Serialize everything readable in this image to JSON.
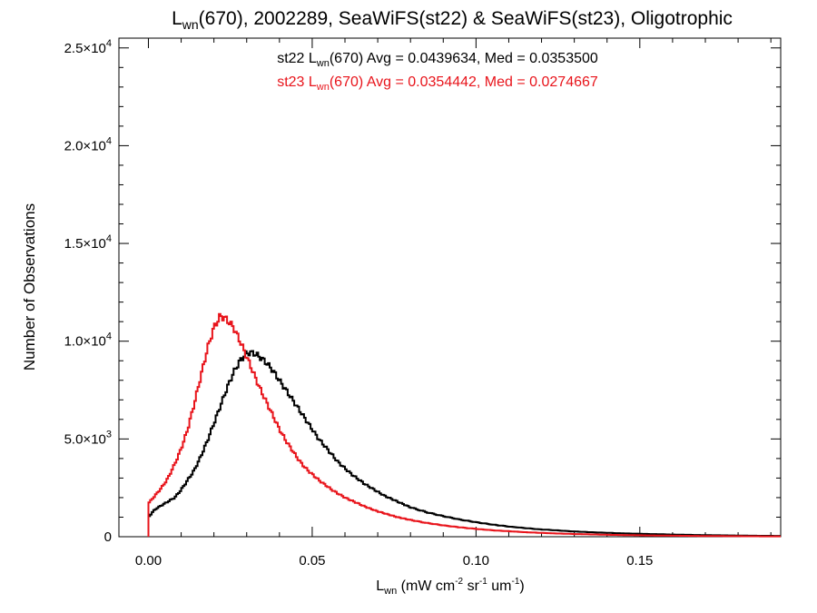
{
  "chart_data": {
    "type": "line",
    "title": {
      "main": "L",
      "sub": "wn",
      "rest": "(670), 2002289, SeaWiFS(st22) & SeaWiFS(st23), Oligotrophic"
    },
    "xlabel": {
      "main": "L",
      "sub": "wn",
      "rest1": " (mW cm",
      "sup1": "-2",
      "rest2": " sr",
      "sup2": "-1",
      "rest3": " um",
      "sup3": "-1",
      "rest4": ")"
    },
    "ylabel": "Number of Observations",
    "xlim": [
      -0.009,
      0.193
    ],
    "ylim": [
      0,
      25500
    ],
    "x_ticks": [
      {
        "value": 0.0,
        "label": "0.00"
      },
      {
        "value": 0.05,
        "label": "0.05"
      },
      {
        "value": 0.1,
        "label": "0.10"
      },
      {
        "value": 0.15,
        "label": "0.15"
      }
    ],
    "y_ticks": [
      {
        "value": 0,
        "mant": "0",
        "exp": ""
      },
      {
        "value": 5000,
        "mant": "5.0×10",
        "exp": "3"
      },
      {
        "value": 10000,
        "mant": "1.0×10",
        "exp": "4"
      },
      {
        "value": 15000,
        "mant": "1.5×10",
        "exp": "4"
      },
      {
        "value": 20000,
        "mant": "2.0×10",
        "exp": "4"
      },
      {
        "value": 25000,
        "mant": "2.5×10",
        "exp": "4"
      }
    ],
    "annotations": [
      {
        "color": "#000000",
        "pre": "st22 L",
        "sub": "wn",
        "post": "(670) Avg = 0.0439634, Med = 0.0353500"
      },
      {
        "color": "#e8141b",
        "pre": "st23 L",
        "sub": "wn",
        "post": "(670) Avg = 0.0354442, Med = 0.0274667"
      }
    ],
    "series": [
      {
        "color": "#000000",
        "points": [
          [
            0.0,
            1000
          ],
          [
            0.002,
            1400
          ],
          [
            0.004,
            1600
          ],
          [
            0.006,
            1800
          ],
          [
            0.008,
            2000
          ],
          [
            0.01,
            2400
          ],
          [
            0.012,
            2900
          ],
          [
            0.014,
            3400
          ],
          [
            0.016,
            4100
          ],
          [
            0.018,
            4900
          ],
          [
            0.02,
            5800
          ],
          [
            0.022,
            6700
          ],
          [
            0.024,
            7600
          ],
          [
            0.026,
            8400
          ],
          [
            0.028,
            9000
          ],
          [
            0.03,
            9400
          ],
          [
            0.032,
            9400
          ],
          [
            0.034,
            9200
          ],
          [
            0.036,
            8900
          ],
          [
            0.038,
            8500
          ],
          [
            0.04,
            8000
          ],
          [
            0.042,
            7500
          ],
          [
            0.044,
            7000
          ],
          [
            0.046,
            6500
          ],
          [
            0.048,
            6000
          ],
          [
            0.05,
            5500
          ],
          [
            0.052,
            5000
          ],
          [
            0.054,
            4600
          ],
          [
            0.056,
            4200
          ],
          [
            0.058,
            3800
          ],
          [
            0.06,
            3500
          ],
          [
            0.062,
            3200
          ],
          [
            0.064,
            2950
          ],
          [
            0.066,
            2700
          ],
          [
            0.068,
            2500
          ],
          [
            0.07,
            2300
          ],
          [
            0.072,
            2100
          ],
          [
            0.074,
            1950
          ],
          [
            0.076,
            1800
          ],
          [
            0.078,
            1650
          ],
          [
            0.08,
            1500
          ],
          [
            0.085,
            1250
          ],
          [
            0.09,
            1050
          ],
          [
            0.095,
            880
          ],
          [
            0.1,
            740
          ],
          [
            0.105,
            620
          ],
          [
            0.11,
            520
          ],
          [
            0.115,
            440
          ],
          [
            0.12,
            370
          ],
          [
            0.125,
            320
          ],
          [
            0.13,
            270
          ],
          [
            0.135,
            230
          ],
          [
            0.14,
            200
          ],
          [
            0.145,
            170
          ],
          [
            0.15,
            150
          ],
          [
            0.155,
            130
          ],
          [
            0.16,
            110
          ],
          [
            0.165,
            95
          ],
          [
            0.17,
            80
          ],
          [
            0.175,
            70
          ],
          [
            0.18,
            60
          ],
          [
            0.185,
            50
          ],
          [
            0.19,
            45
          ],
          [
            0.193,
            40
          ]
        ]
      },
      {
        "color": "#e8141b",
        "points": [
          [
            0.0,
            1700
          ],
          [
            0.002,
            2100
          ],
          [
            0.004,
            2500
          ],
          [
            0.006,
            3000
          ],
          [
            0.008,
            3700
          ],
          [
            0.01,
            4500
          ],
          [
            0.012,
            5500
          ],
          [
            0.014,
            6800
          ],
          [
            0.016,
            8200
          ],
          [
            0.018,
            9600
          ],
          [
            0.02,
            10700
          ],
          [
            0.022,
            11300
          ],
          [
            0.024,
            11100
          ],
          [
            0.026,
            10700
          ],
          [
            0.028,
            10000
          ],
          [
            0.03,
            9200
          ],
          [
            0.032,
            8400
          ],
          [
            0.034,
            7600
          ],
          [
            0.036,
            6900
          ],
          [
            0.038,
            6200
          ],
          [
            0.04,
            5500
          ],
          [
            0.042,
            4900
          ],
          [
            0.044,
            4400
          ],
          [
            0.046,
            3900
          ],
          [
            0.048,
            3500
          ],
          [
            0.05,
            3200
          ],
          [
            0.052,
            2900
          ],
          [
            0.054,
            2650
          ],
          [
            0.056,
            2400
          ],
          [
            0.058,
            2200
          ],
          [
            0.06,
            2000
          ],
          [
            0.062,
            1850
          ],
          [
            0.064,
            1700
          ],
          [
            0.066,
            1550
          ],
          [
            0.068,
            1420
          ],
          [
            0.07,
            1300
          ],
          [
            0.072,
            1200
          ],
          [
            0.074,
            1100
          ],
          [
            0.076,
            1000
          ],
          [
            0.078,
            930
          ],
          [
            0.08,
            860
          ],
          [
            0.085,
            700
          ],
          [
            0.09,
            580
          ],
          [
            0.095,
            480
          ],
          [
            0.1,
            400
          ],
          [
            0.105,
            330
          ],
          [
            0.11,
            280
          ],
          [
            0.115,
            230
          ],
          [
            0.12,
            195
          ],
          [
            0.125,
            165
          ],
          [
            0.13,
            140
          ],
          [
            0.135,
            120
          ],
          [
            0.14,
            100
          ],
          [
            0.145,
            85
          ],
          [
            0.15,
            72
          ],
          [
            0.155,
            62
          ],
          [
            0.16,
            52
          ],
          [
            0.165,
            44
          ],
          [
            0.17,
            37
          ],
          [
            0.175,
            31
          ],
          [
            0.18,
            26
          ],
          [
            0.185,
            22
          ],
          [
            0.19,
            18
          ],
          [
            0.193,
            16
          ]
        ]
      }
    ]
  }
}
